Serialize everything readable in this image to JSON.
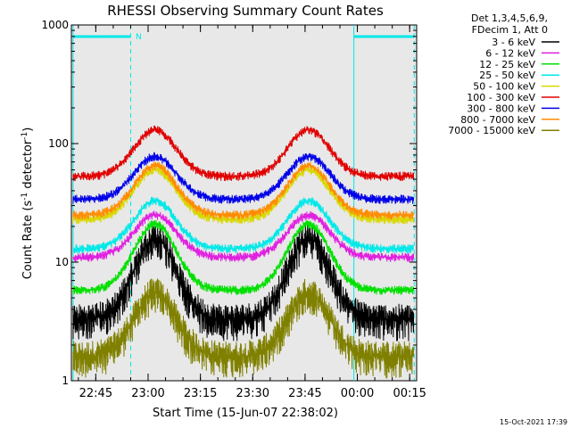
{
  "chart_data": {
    "type": "line",
    "title": "RHESSI Observing Summary Count Rates",
    "xlabel": "Start Time (15-Jun-07 22:38:02)",
    "ylabel": "Count Rate (s",
    "ylabel_sup1": "-1",
    "ylabel_mid": " detector",
    "ylabel_sup2": "-1",
    "ylabel_end": ")",
    "yscale": "log",
    "ylim": [
      1,
      1000
    ],
    "xlim_minutes": [
      0,
      99
    ],
    "x_ticks": [
      {
        "label": "22:45",
        "minute": 7
      },
      {
        "label": "23:00",
        "minute": 22
      },
      {
        "label": "23:15",
        "minute": 37
      },
      {
        "label": "23:30",
        "minute": 52
      },
      {
        "label": "23:45",
        "minute": 67
      },
      {
        "label": "00:00",
        "minute": 82
      },
      {
        "label": "00:15",
        "minute": 97
      }
    ],
    "y_ticks": [
      {
        "label": "1",
        "value": 1
      },
      {
        "label": "10",
        "value": 10
      },
      {
        "label": "100",
        "value": 100
      },
      {
        "label": "1000",
        "value": 1000
      }
    ],
    "legend_header": [
      "Det 1,3,4,5,6,9,",
      "FDecim 1, Att 0"
    ],
    "series": [
      {
        "name": "3 - 6 keV",
        "color": "#000000",
        "base": 3.3,
        "peak": 16
      },
      {
        "name": "6 - 12 keV",
        "color": "#e020e0",
        "base": 11,
        "peak": 25
      },
      {
        "name": "12 - 25 keV",
        "color": "#00e000",
        "base": 5.8,
        "peak": 21
      },
      {
        "name": "25 - 50 keV",
        "color": "#00e8e8",
        "base": 13,
        "peak": 33
      },
      {
        "name": "50 - 100 keV",
        "color": "#d8d800",
        "base": 23,
        "peak": 60
      },
      {
        "name": "100 - 300 keV",
        "color": "#e00000",
        "base": 53,
        "peak": 130
      },
      {
        "name": "300 - 800 keV",
        "color": "#0000e8",
        "base": 34,
        "peak": 78
      },
      {
        "name": "800 - 7000 keV",
        "color": "#ff8c00",
        "base": 25,
        "peak": 65
      },
      {
        "name": "7000 - 15000 keV",
        "color": "#808000",
        "base": 1.6,
        "peak": 5.5
      }
    ],
    "annotations": {
      "night_marker": "N",
      "timestamp": "15-Oct-2021 17:39"
    }
  }
}
